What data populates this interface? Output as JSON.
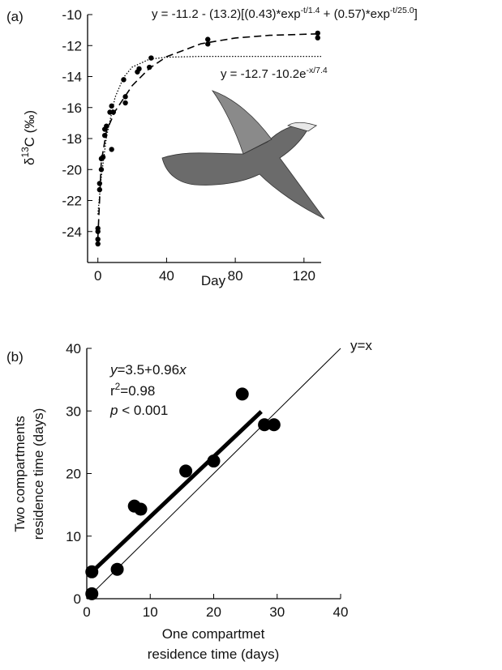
{
  "chart_data": [
    {
      "type": "scatter",
      "panel_label": "(a)",
      "y_label": [
        {
          "text": "δ"
        },
        {
          "text": "13",
          "style": "sup"
        },
        {
          "text": "C (‰)"
        }
      ],
      "x_label": [
        "Day"
      ],
      "xlim": [
        -6,
        130
      ],
      "ylim": [
        -26,
        -10
      ],
      "xticks": [
        0,
        40,
        80,
        120
      ],
      "yticks": [
        -24,
        -22,
        -20,
        -18,
        -16,
        -14,
        -12,
        -10
      ],
      "points": {
        "color": "#000000",
        "x": [
          0,
          0,
          0,
          0,
          1,
          1,
          2,
          2,
          3,
          4,
          4,
          5,
          7,
          8,
          8,
          9,
          15,
          16,
          16,
          23,
          24,
          30,
          31,
          64,
          64,
          128,
          128
        ],
        "values": [
          -24.8,
          -24.5,
          -24.0,
          -23.8,
          -21.3,
          -20.9,
          -20.0,
          -19.3,
          -19.2,
          -17.8,
          -17.4,
          -17.2,
          -16.3,
          -15.9,
          -18.7,
          -16.3,
          -14.2,
          -15.3,
          -15.7,
          -13.7,
          -13.5,
          -13.4,
          -12.8,
          -11.6,
          -11.9,
          -11.2,
          -11.5
        ]
      },
      "lines": [
        {
          "style": "dashed",
          "width": 1.6,
          "x": [
            0,
            2,
            5,
            10,
            20,
            30,
            40,
            60,
            80,
            100,
            130
          ],
          "values": [
            -24.4,
            -19.5,
            -17.52,
            -16.24,
            -14.58,
            -13.47,
            -12.72,
            -11.88,
            -11.51,
            -11.34,
            -11.24
          ]
        },
        {
          "style": "dotted",
          "width": 1.3,
          "x": [
            0,
            2,
            5,
            10,
            15,
            20,
            30,
            40,
            60,
            130
          ],
          "values": [
            -22.9,
            -20.48,
            -17.89,
            -15.34,
            -14.04,
            -13.39,
            -12.88,
            -12.75,
            -12.7,
            -12.7
          ]
        }
      ],
      "annotations": [
        [
          {
            "text": "y = -11.2 - (13.2)[(0.43)*exp"
          },
          {
            "text": "-t/1.4",
            "style": "sup"
          },
          {
            "text": " + (0.57)*exp"
          },
          {
            "text": "-t/25.0",
            "style": "sup"
          },
          {
            "text": "]"
          }
        ],
        [
          {
            "text": "y = -12.7 -10.2e"
          },
          {
            "text": "-x/7.4",
            "style": "sup"
          }
        ]
      ]
    },
    {
      "type": "scatter",
      "panel_label": "(b)",
      "y_label": [
        {
          "text": "Two compartments"
        },
        {
          "text": "residence time (days)"
        }
      ],
      "x_label": [
        "One compartmet",
        "residence time (days)"
      ],
      "xlim": [
        0,
        40
      ],
      "ylim": [
        0,
        40
      ],
      "xticks": [
        0,
        10,
        20,
        30,
        40
      ],
      "yticks": [
        0,
        10,
        20,
        30,
        40
      ],
      "points": {
        "color": "#000000",
        "x": [
          0.8,
          0.8,
          4.8,
          7.5,
          8.5,
          15.6,
          20,
          24.5,
          28,
          29.5
        ],
        "values": [
          0.8,
          4.3,
          4.7,
          14.8,
          14.3,
          20.4,
          22,
          32.7,
          27.8,
          27.8
        ]
      },
      "lines": [
        {
          "style": "solid",
          "width": 5,
          "x": [
            0.8,
            27.5
          ],
          "values": [
            4.27,
            29.9
          ]
        },
        {
          "style": "solid",
          "width": 1,
          "x": [
            0,
            40
          ],
          "values": [
            0,
            40
          ]
        }
      ],
      "annotations": [
        [
          {
            "text": "y",
            "style": "italic"
          },
          {
            "text": "=3.5+0.96"
          },
          {
            "text": "x",
            "style": "italic"
          }
        ],
        [
          {
            "text": "r"
          },
          {
            "text": "2",
            "style": "sup"
          },
          {
            "text": "=0.98"
          }
        ],
        [
          {
            "text": "p",
            "style": "italic"
          },
          {
            "text": " < 0.001"
          }
        ],
        [
          {
            "text": "y=x"
          }
        ]
      ]
    }
  ]
}
